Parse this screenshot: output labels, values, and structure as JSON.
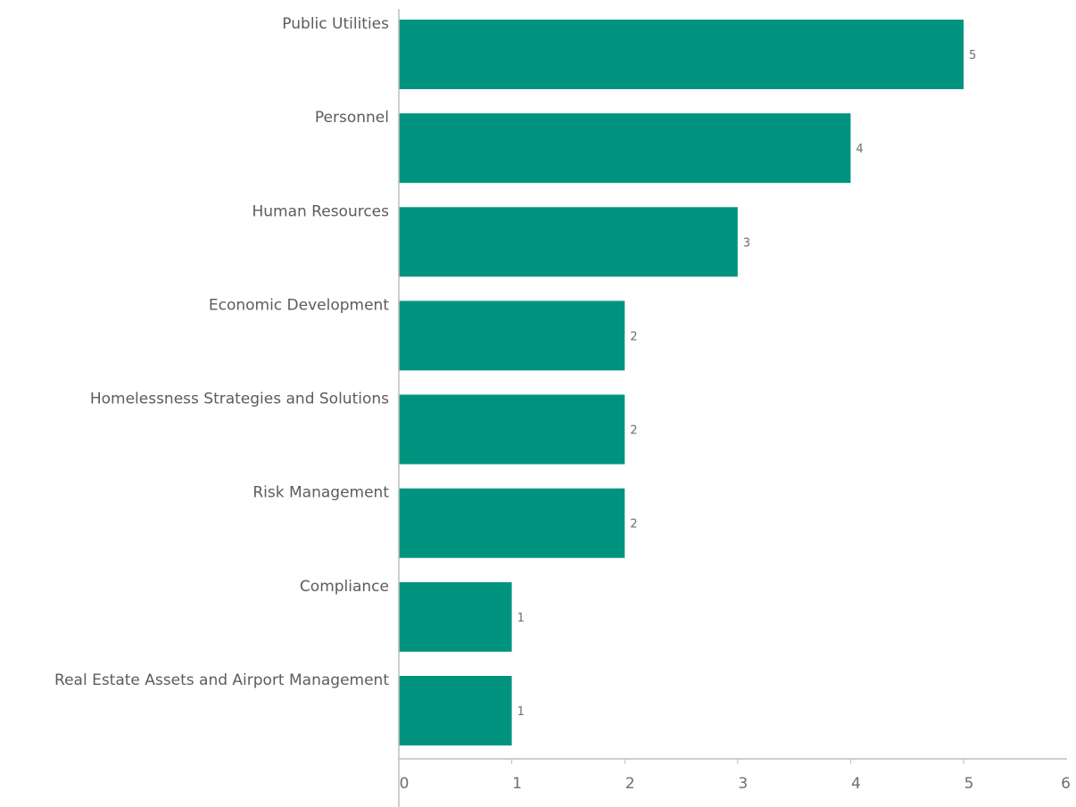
{
  "chart_data": {
    "type": "bar",
    "orientation": "horizontal",
    "categories": [
      "Public Utilities",
      "Personnel",
      "Human Resources",
      "Economic Development",
      "Homelessness Strategies and Solutions",
      "Risk Management",
      "Compliance",
      "Real Estate Assets and Airport Management"
    ],
    "values": [
      5,
      4,
      3,
      2,
      2,
      2,
      1,
      1
    ],
    "data_labels": [
      "5",
      "4",
      "3",
      "2",
      "2",
      "2",
      "1",
      "1"
    ],
    "title": "",
    "xlabel": "",
    "ylabel": "",
    "xlim": [
      0,
      6
    ],
    "x_ticks": [
      0,
      1,
      2,
      3,
      4,
      5,
      6
    ],
    "x_tick_labels": [
      "0",
      "1",
      "2",
      "3",
      "4",
      "5",
      "6"
    ],
    "grid": false,
    "legend": "none",
    "bar_color": "#009480"
  }
}
